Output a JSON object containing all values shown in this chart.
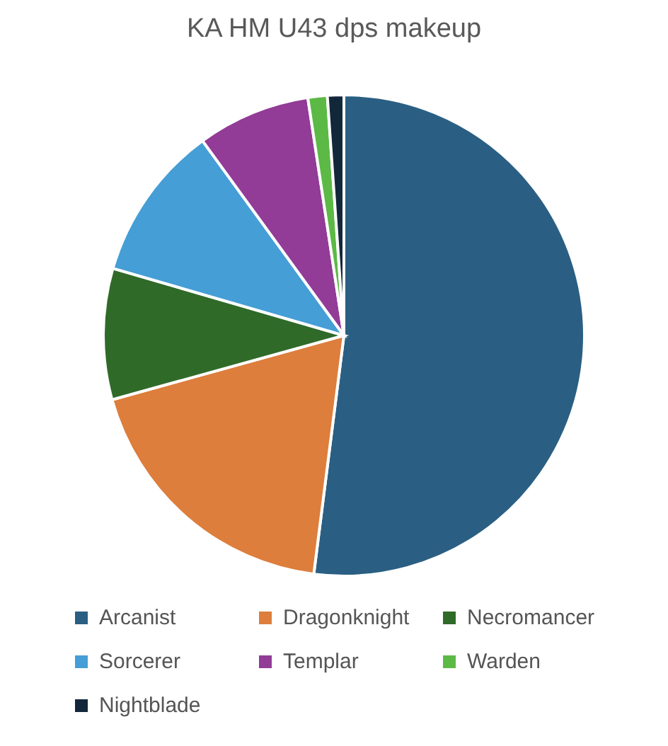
{
  "chart_data": {
    "type": "pie",
    "title": "KA HM U43 dps makeup",
    "categories": [
      "Arcanist",
      "Dragonknight",
      "Necromancer",
      "Sorcerer",
      "Templar",
      "Warden",
      "Nightblade"
    ],
    "values": [
      52,
      18.7,
      8.8,
      10.5,
      7.6,
      1.3,
      1.1
    ],
    "colors": [
      "#2a5f83",
      "#dd7e3d",
      "#306a29",
      "#459ed5",
      "#923b97",
      "#5cb946",
      "#13273b"
    ],
    "legend": "bottom"
  }
}
